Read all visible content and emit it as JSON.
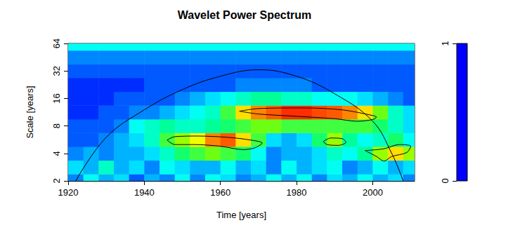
{
  "chart_data": {
    "type": "heatmap",
    "title": "Wavelet Power Spectrum",
    "x_label": "Time [years]",
    "y_label": "Scale [years]",
    "log": "y",
    "xlim": [
      1920,
      2011
    ],
    "xticks": [
      1920,
      1940,
      1960,
      1980,
      2000
    ],
    "ylim": [
      2,
      64
    ],
    "yticks": [
      2,
      4,
      8,
      16,
      32,
      64
    ],
    "x": [
      1922,
      1926,
      1930,
      1934,
      1938,
      1942,
      1946,
      1950,
      1954,
      1958,
      1962,
      1966,
      1970,
      1974,
      1978,
      1982,
      1986,
      1990,
      1994,
      1998,
      2002,
      2006,
      2010
    ],
    "y": [
      2,
      2.83,
      4,
      5.66,
      8,
      11.31,
      16,
      22.63,
      32,
      45.25,
      64
    ],
    "values": [
      [
        0.15,
        0.3,
        0.2,
        0.25,
        0.1,
        0.2,
        0.15,
        0.3,
        0.15,
        0.3,
        0.25,
        0.15,
        0.2,
        0.3,
        0.2,
        0.3,
        0.15,
        0.25,
        0.2,
        0.3,
        0.2,
        0.25,
        0.15
      ],
      [
        0.25,
        0.2,
        0.35,
        0.2,
        0.25,
        0.15,
        0.3,
        0.25,
        0.2,
        0.2,
        0.3,
        0.2,
        0.25,
        0.15,
        0.3,
        0.2,
        0.25,
        0.3,
        0.15,
        0.2,
        0.3,
        0.2,
        0.25
      ],
      [
        0.15,
        0.2,
        0.15,
        0.2,
        0.2,
        0.25,
        0.35,
        0.45,
        0.5,
        0.55,
        0.5,
        0.45,
        0.3,
        0.15,
        0.2,
        0.2,
        0.25,
        0.35,
        0.3,
        0.4,
        0.6,
        0.75,
        0.6
      ],
      [
        0.1,
        0.1,
        0.15,
        0.2,
        0.25,
        0.35,
        0.5,
        0.6,
        0.7,
        0.85,
        0.9,
        0.75,
        0.5,
        0.25,
        0.2,
        0.25,
        0.45,
        0.6,
        0.4,
        0.3,
        0.35,
        0.45,
        0.3
      ],
      [
        0.1,
        0.1,
        0.1,
        0.15,
        0.3,
        0.35,
        0.4,
        0.35,
        0.35,
        0.4,
        0.45,
        0.5,
        0.55,
        0.55,
        0.5,
        0.5,
        0.5,
        0.5,
        0.5,
        0.5,
        0.45,
        0.35,
        0.25
      ],
      [
        0.05,
        0.05,
        0.1,
        0.1,
        0.15,
        0.15,
        0.2,
        0.25,
        0.3,
        0.35,
        0.5,
        0.75,
        0.85,
        0.9,
        0.95,
        0.95,
        0.92,
        0.9,
        0.85,
        0.75,
        0.55,
        0.35,
        0.25
      ],
      [
        0.05,
        0.05,
        0.05,
        0.1,
        0.1,
        0.1,
        0.1,
        0.15,
        0.2,
        0.25,
        0.3,
        0.35,
        0.4,
        0.4,
        0.35,
        0.35,
        0.3,
        0.3,
        0.3,
        0.25,
        0.2,
        0.15,
        0.1
      ],
      [
        0.05,
        0.05,
        0.05,
        0.05,
        0.05,
        0.1,
        0.1,
        0.1,
        0.1,
        0.1,
        0.1,
        0.15,
        0.15,
        0.15,
        0.15,
        0.15,
        0.1,
        0.1,
        0.1,
        0.1,
        0.1,
        0.1,
        0.1
      ],
      [
        0.1,
        0.1,
        0.1,
        0.1,
        0.1,
        0.1,
        0.1,
        0.1,
        0.1,
        0.1,
        0.1,
        0.1,
        0.1,
        0.1,
        0.1,
        0.1,
        0.1,
        0.1,
        0.1,
        0.1,
        0.1,
        0.1,
        0.1
      ],
      [
        0.15,
        0.15,
        0.15,
        0.15,
        0.15,
        0.15,
        0.15,
        0.15,
        0.15,
        0.15,
        0.15,
        0.15,
        0.15,
        0.15,
        0.15,
        0.15,
        0.15,
        0.15,
        0.15,
        0.15,
        0.15,
        0.15,
        0.15
      ],
      [
        0.3,
        0.3,
        0.3,
        0.3,
        0.3,
        0.3,
        0.3,
        0.3,
        0.3,
        0.3,
        0.3,
        0.3,
        0.3,
        0.3,
        0.3,
        0.3,
        0.3,
        0.3,
        0.3,
        0.3,
        0.3,
        0.3,
        0.3
      ]
    ],
    "colorbar": {
      "range": [
        0,
        1
      ],
      "ticks": [
        0,
        1
      ]
    },
    "contours": [
      [
        [
          1946,
          5.6
        ],
        [
          1948,
          6.1
        ],
        [
          1954,
          6.2
        ],
        [
          1962,
          6.0
        ],
        [
          1968,
          5.6
        ],
        [
          1971,
          5.2
        ],
        [
          1969,
          4.6
        ],
        [
          1966,
          4.4
        ],
        [
          1960,
          4.8
        ],
        [
          1953,
          5.0
        ],
        [
          1948,
          5.0
        ],
        [
          1946,
          5.6
        ]
      ],
      [
        [
          1965,
          11.6
        ],
        [
          1970,
          12.4
        ],
        [
          1982,
          12.6
        ],
        [
          1992,
          12.0
        ],
        [
          2000,
          10.4
        ],
        [
          2001,
          10.0
        ],
        [
          2000,
          9.4
        ],
        [
          1996,
          9.0
        ],
        [
          1990,
          9.6
        ],
        [
          1980,
          10.2
        ],
        [
          1970,
          10.8
        ],
        [
          1965,
          11.6
        ]
      ],
      [
        [
          1987,
          5.4
        ],
        [
          1989,
          5.9
        ],
        [
          1992,
          5.8
        ],
        [
          1993,
          5.3
        ],
        [
          1991,
          4.9
        ],
        [
          1988,
          5.0
        ],
        [
          1987,
          5.4
        ]
      ],
      [
        [
          1998,
          4.3
        ],
        [
          2003,
          4.5
        ],
        [
          2007,
          5.0
        ],
        [
          2010,
          4.8
        ],
        [
          2009,
          4.1
        ],
        [
          2005,
          3.7
        ],
        [
          2003,
          3.3
        ],
        [
          2001,
          3.7
        ],
        [
          1998,
          4.3
        ]
      ]
    ],
    "cone": [
      [
        1922,
        2
      ],
      [
        1930,
        6
      ],
      [
        1940,
        12
      ],
      [
        1950,
        20
      ],
      [
        1960,
        28
      ],
      [
        1970,
        33
      ],
      [
        1980,
        28
      ],
      [
        1990,
        18
      ],
      [
        2000,
        9
      ],
      [
        2005,
        4
      ],
      [
        2008,
        2
      ]
    ]
  }
}
